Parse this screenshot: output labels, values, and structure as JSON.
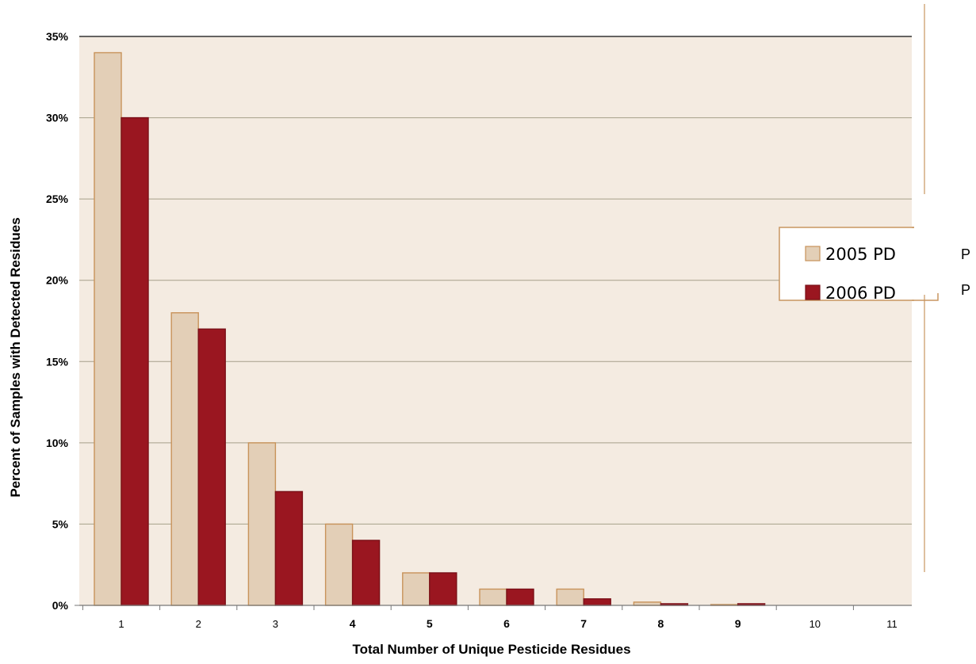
{
  "chart_data": {
    "type": "bar",
    "categories": [
      "1",
      "2",
      "3",
      "4",
      "5",
      "6",
      "7",
      "8",
      "9",
      "10",
      "11"
    ],
    "bold_categories": [
      "4",
      "5",
      "6",
      "7",
      "8",
      "9"
    ],
    "series": [
      {
        "name": "2005 PD",
        "values": [
          34,
          18,
          10,
          5,
          2,
          1,
          1,
          0.2,
          0.05,
          0,
          0
        ],
        "color": "#e3cfb7",
        "stroke": "#c8935a"
      },
      {
        "name": "2006 PD",
        "values": [
          30,
          17,
          7,
          4,
          2,
          1,
          0.4,
          0.1,
          0.1,
          0,
          0
        ],
        "color": "#9a1620",
        "stroke": "#7a1018"
      }
    ],
    "xlabel": "Total Number of Unique Pesticide Residues",
    "ylabel": "Percent of Samples with Detected Residues",
    "ylim": [
      0,
      35
    ],
    "yticks": [
      "0%",
      "5%",
      "10%",
      "15%",
      "20%",
      "25%",
      "30%",
      "35%"
    ],
    "ytick_values": [
      0,
      5,
      10,
      15,
      20,
      25,
      30,
      35
    ],
    "grid": true,
    "legend_position": "right",
    "plot_background": "#f4ebe1",
    "grid_color": "#a6a08a",
    "frame_color": "#c89660",
    "right_side_text": [
      "P",
      "P"
    ]
  }
}
